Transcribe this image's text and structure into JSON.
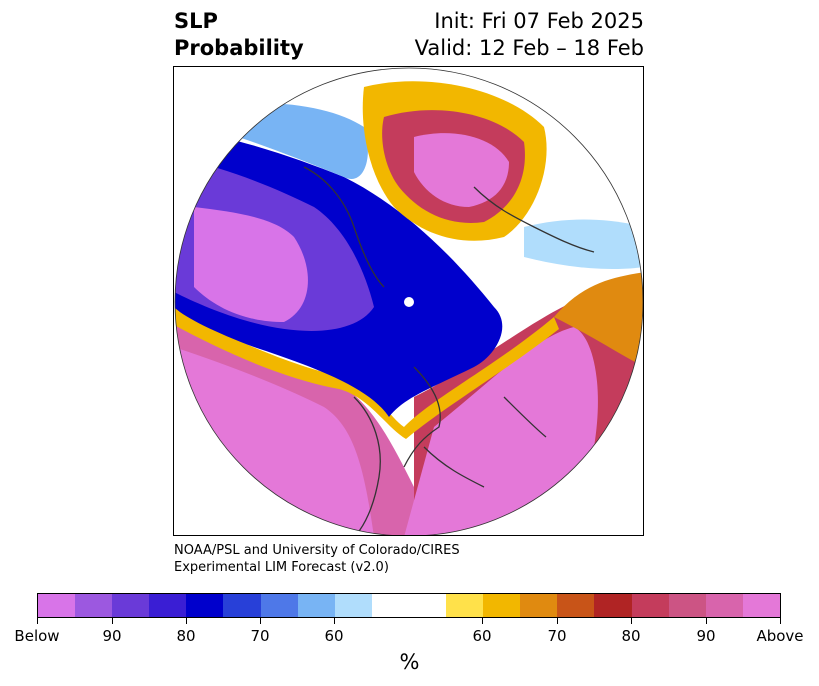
{
  "title": {
    "left_line1": "SLP",
    "left_line2": "Probability",
    "right_line1": "Init: Fri 07 Feb 2025",
    "right_line2": "Valid: 12 Feb – 18 Feb"
  },
  "credit": {
    "line1": "NOAA/PSL and University of Colorado/CIRES",
    "line2": "Experimental LIM Forecast (v2.0)"
  },
  "colorbar": {
    "colors": [
      "#d874e8",
      "#9c58e0",
      "#6a3ad8",
      "#3a1ed4",
      "#0000cc",
      "#2840d8",
      "#4e78e8",
      "#78b4f4",
      "#b0ddfc",
      "#ffffff",
      "#ffffff",
      "#ffe14a",
      "#f2b700",
      "#e08a10",
      "#c85418",
      "#b02424",
      "#c43c5c",
      "#cc5484",
      "#d864ac",
      "#e478d8"
    ],
    "tick_labels": [
      "Below",
      "90",
      "80",
      "70",
      "60",
      "60",
      "70",
      "80",
      "90",
      "Above"
    ],
    "label": "%"
  },
  "map_colors": {
    "above_strong": "#e478d8",
    "above_mid": "#d864ac",
    "above_red": "#b02424",
    "above_orange": "#e08a10",
    "above_yellow": "#f2b700",
    "below_strong": "#d874e8",
    "below_purple": "#6a3ad8",
    "below_blue": "#0000cc",
    "below_light": "#78b4f4",
    "below_pale": "#b0ddfc",
    "coast": "#333333"
  }
}
